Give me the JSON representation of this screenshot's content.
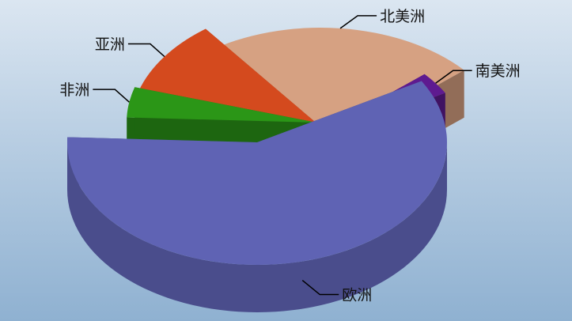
{
  "chart_data": {
    "type": "pie",
    "style": "3d-exploded",
    "categories": [
      "欧洲",
      "非洲",
      "亚洲",
      "北美洲",
      "南美洲"
    ],
    "values": [
      59,
      4,
      10,
      24,
      3
    ],
    "colors": {
      "欧洲": "#5f63b4",
      "非洲": "#2b9617",
      "亚洲": "#d44a1e",
      "北美洲": "#d6a182",
      "南美洲": "#5e1a90"
    },
    "title": "",
    "legend": "none",
    "data_labels": "leader-lines"
  }
}
